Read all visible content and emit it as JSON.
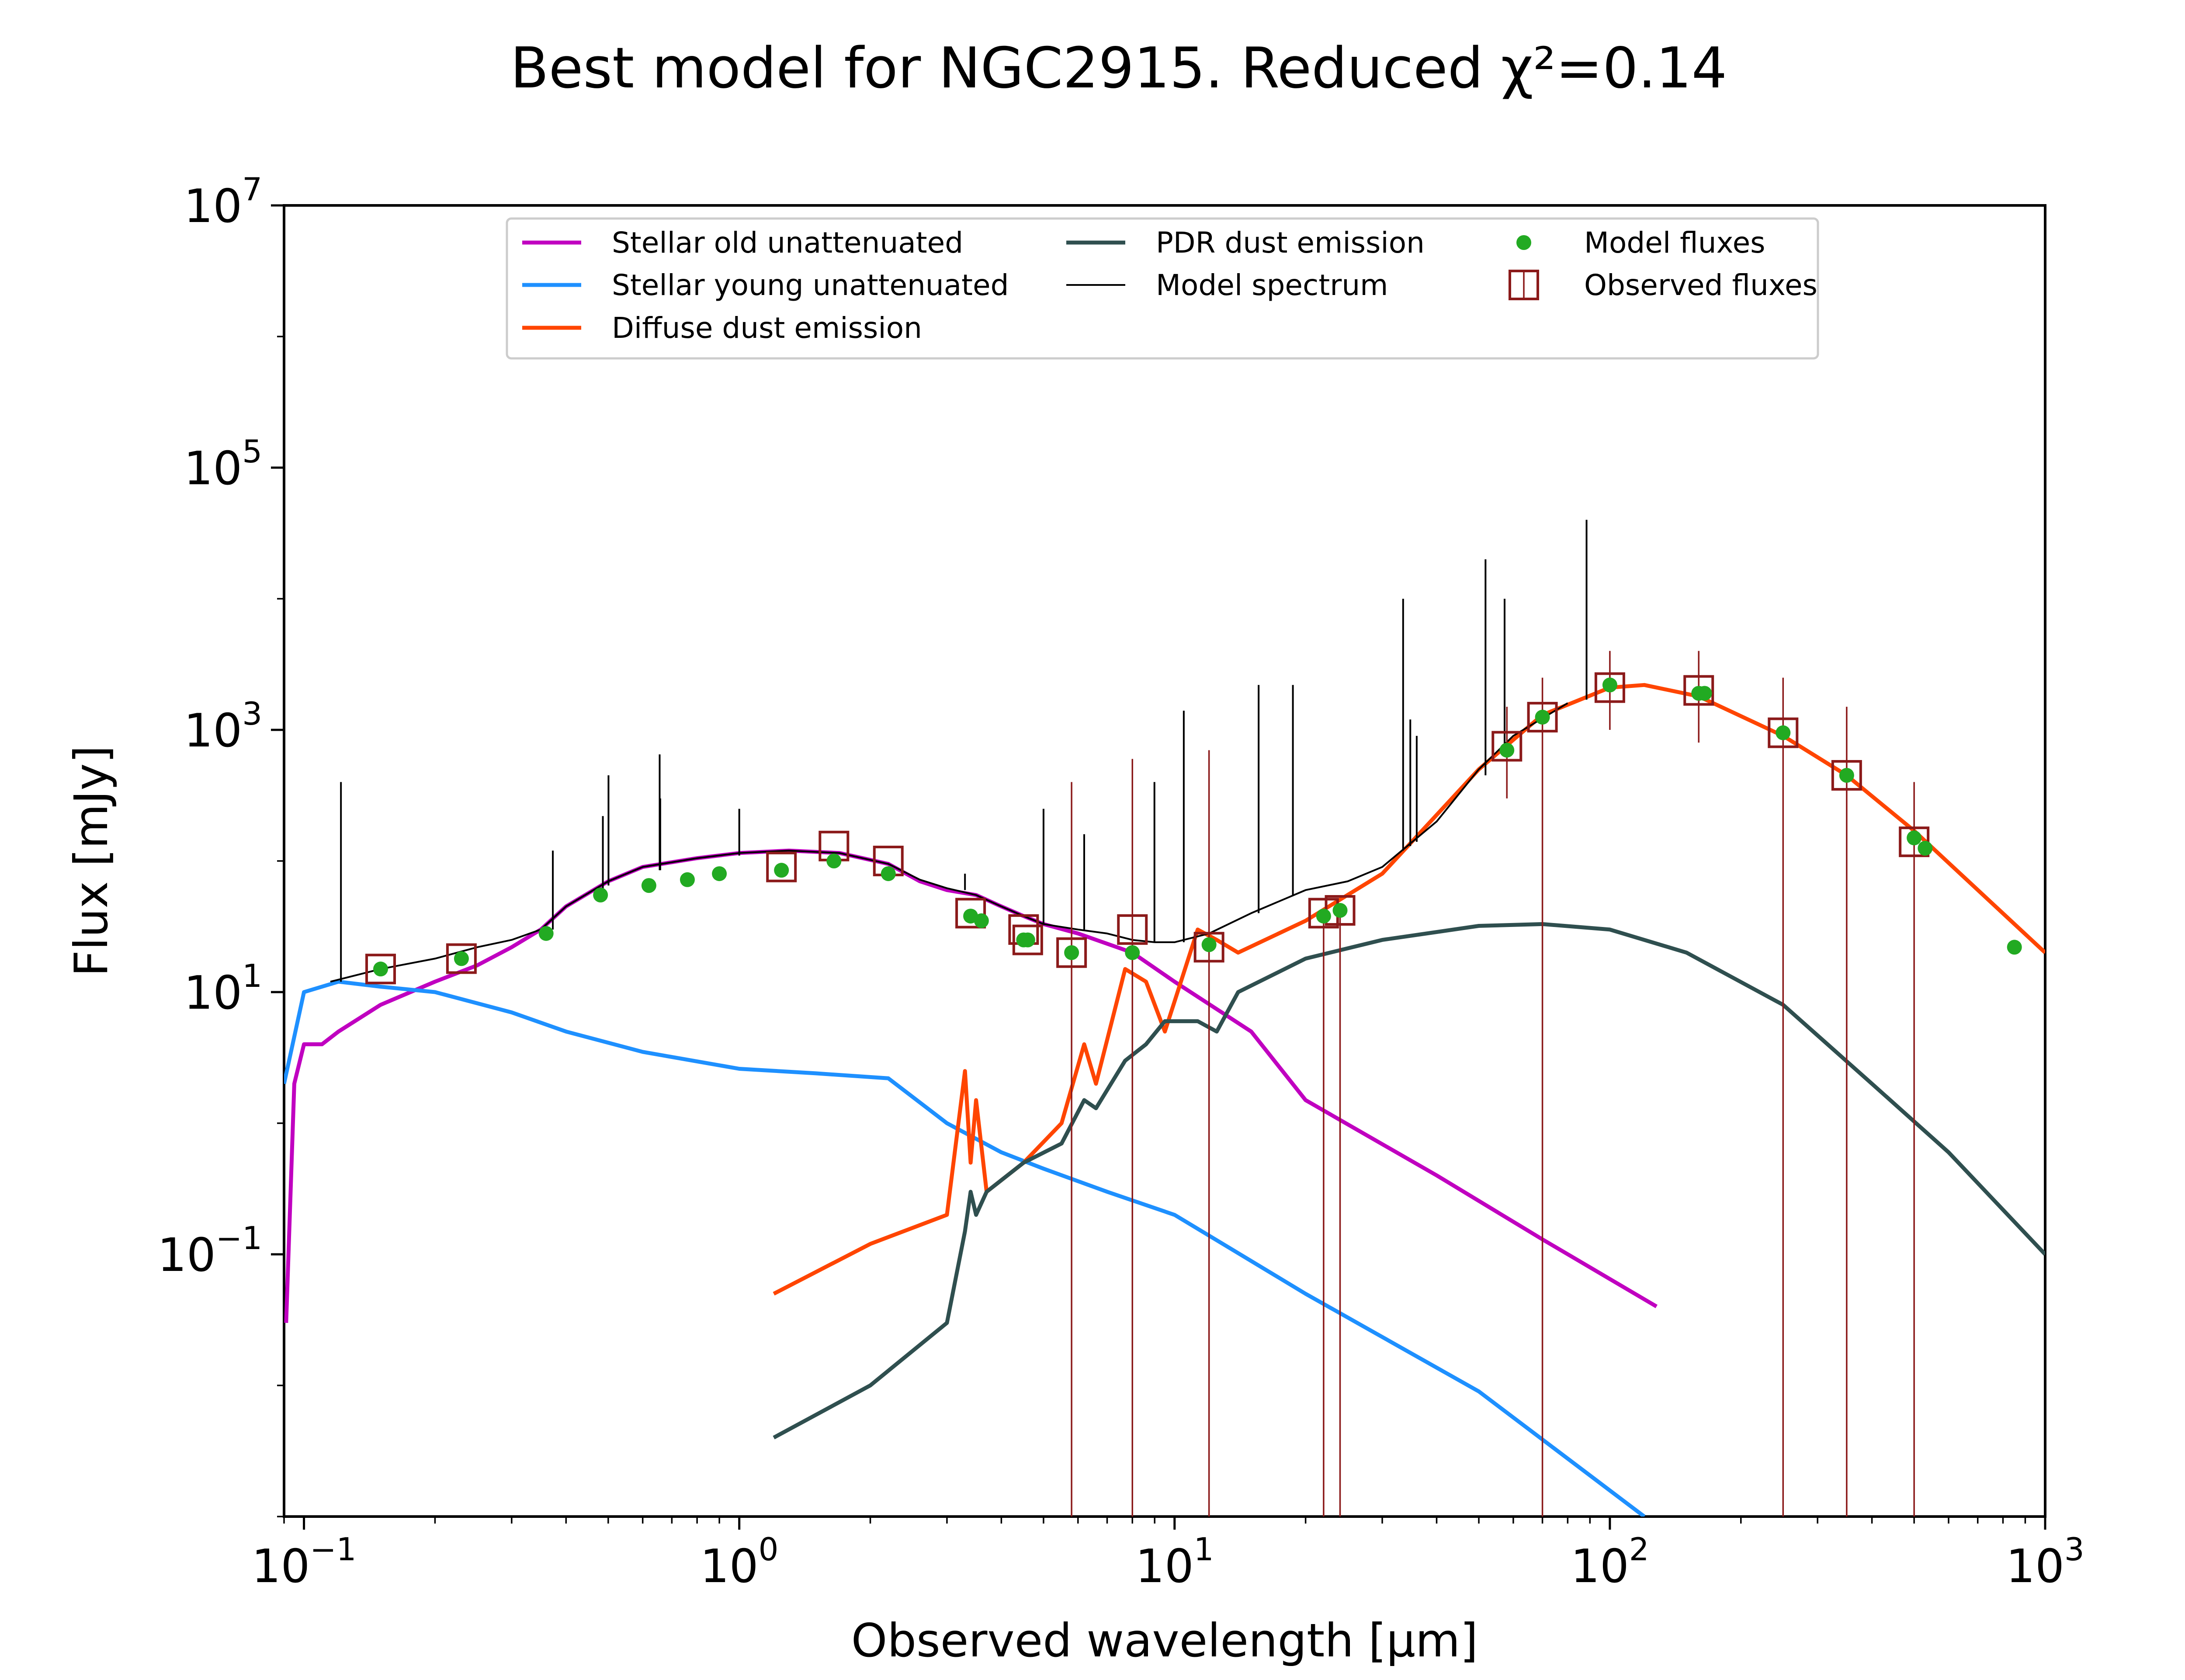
{
  "chart_data": {
    "type": "line",
    "title": "Best model for NGC2915. Reduced χ²=0.14",
    "xlabel": "Observed wavelength [μm]",
    "ylabel": "Flux [mJy]",
    "xscale": "log",
    "yscale": "log",
    "xlim": [
      0.09,
      1000
    ],
    "ylim": [
      0.001,
      10000000
    ],
    "x_ticks": [
      {
        "value": 0.1,
        "base": "10",
        "exp": "−1"
      },
      {
        "value": 1,
        "base": "10",
        "exp": "0"
      },
      {
        "value": 10,
        "base": "10",
        "exp": "1"
      },
      {
        "value": 100,
        "base": "10",
        "exp": "2"
      },
      {
        "value": 1000,
        "base": "10",
        "exp": "3"
      }
    ],
    "y_ticks": [
      {
        "value": 0.1,
        "base": "10",
        "exp": "−1"
      },
      {
        "value": 10,
        "base": "10",
        "exp": "1"
      },
      {
        "value": 1000,
        "base": "10",
        "exp": "3"
      },
      {
        "value": 100000,
        "base": "10",
        "exp": "5"
      },
      {
        "value": 10000000,
        "base": "10",
        "exp": "7"
      }
    ],
    "grid": false,
    "legend_position": "top",
    "legend": [
      {
        "label": "Stellar old unattenuated",
        "kind": "line",
        "color": "#c000c0"
      },
      {
        "label": "Stellar young unattenuated",
        "kind": "line",
        "color": "#1e90ff"
      },
      {
        "label": "Diffuse dust emission",
        "kind": "line",
        "color": "#ff4500"
      },
      {
        "label": "PDR dust emission",
        "kind": "line",
        "color": "#2f4f4f"
      },
      {
        "label": "Model spectrum",
        "kind": "thinline",
        "color": "#000000"
      },
      {
        "label": "Model fluxes",
        "kind": "dot",
        "color": "#22aa22"
      },
      {
        "label": "Observed fluxes",
        "kind": "square",
        "color": "#8b1a1a"
      }
    ],
    "series": [
      {
        "name": "Stellar old unattenuated",
        "color": "#c000c0",
        "x": [
          0.091,
          0.095,
          0.1,
          0.11,
          0.12,
          0.15,
          0.2,
          0.25,
          0.3,
          0.35,
          0.4,
          0.5,
          0.6,
          0.8,
          1.0,
          1.3,
          1.7,
          2.2,
          2.6,
          3.0,
          3.5,
          4.0,
          4.5,
          5.0,
          6.0,
          8.0,
          10,
          15,
          20,
          40,
          70,
          128
        ],
        "y": [
          0.03,
          2,
          4,
          4,
          5,
          8,
          12,
          16,
          22,
          30,
          45,
          70,
          90,
          105,
          115,
          120,
          115,
          95,
          70,
          60,
          55,
          45,
          38,
          33,
          28,
          20,
          12,
          5,
          1.5,
          0.4,
          0.13,
          0.04
        ]
      },
      {
        "name": "Stellar young unattenuated",
        "color": "#1e90ff",
        "x": [
          0.09,
          0.1,
          0.12,
          0.15,
          0.2,
          0.3,
          0.4,
          0.6,
          1.0,
          1.5,
          2.2,
          3.0,
          4.0,
          5.0,
          7.0,
          10,
          20,
          50,
          120
        ],
        "y": [
          2,
          10,
          12,
          11,
          10,
          7,
          5,
          3.5,
          2.6,
          2.4,
          2.2,
          1.0,
          0.6,
          0.45,
          0.3,
          0.2,
          0.05,
          0.009,
          0.001
        ]
      },
      {
        "name": "Diffuse dust emission",
        "color": "#ff4500",
        "x": [
          1.2,
          2.0,
          3.0,
          3.3,
          3.4,
          3.5,
          3.7,
          4.5,
          5.5,
          6.2,
          6.6,
          7.7,
          8.6,
          9.5,
          11.3,
          12.5,
          14,
          20,
          30,
          50,
          70,
          100,
          120,
          160,
          250,
          350,
          500,
          1000
        ],
        "y": [
          0.05,
          0.12,
          0.2,
          2.5,
          0.5,
          1.5,
          0.3,
          0.5,
          1.0,
          4.0,
          2.0,
          15,
          12,
          5,
          30,
          25,
          20,
          35,
          80,
          500,
          1300,
          2100,
          2200,
          1800,
          900,
          450,
          170,
          20
        ]
      },
      {
        "name": "PDR dust emission",
        "color": "#2f4f4f",
        "x": [
          1.2,
          2.0,
          3.0,
          3.3,
          3.4,
          3.5,
          3.7,
          4.5,
          5.5,
          6.2,
          6.6,
          7.7,
          8.6,
          9.5,
          11.3,
          12.5,
          14,
          20,
          30,
          50,
          70,
          100,
          150,
          250,
          400,
          600,
          1000
        ],
        "y": [
          0.004,
          0.01,
          0.03,
          0.15,
          0.3,
          0.2,
          0.3,
          0.5,
          0.7,
          1.5,
          1.3,
          3,
          4,
          6,
          6,
          5,
          10,
          18,
          25,
          32,
          33,
          30,
          20,
          8,
          2,
          0.6,
          0.1
        ]
      },
      {
        "name": "Model spectrum",
        "color": "#000000",
        "x": [
          0.115,
          0.15,
          0.2,
          0.25,
          0.3,
          0.35,
          0.4,
          0.5,
          0.6,
          0.8,
          1.0,
          1.3,
          1.7,
          2.2,
          2.6,
          3.0,
          3.5,
          4.0,
          4.5,
          5.0,
          6.0,
          7.0,
          8.0,
          9.0,
          10,
          12,
          15,
          20,
          25,
          30,
          40,
          50,
          60,
          80
        ],
        "y": [
          12,
          15,
          18,
          22,
          25,
          30,
          45,
          70,
          90,
          105,
          115,
          120,
          115,
          95,
          72,
          62,
          55,
          45,
          38,
          33,
          30,
          28,
          25,
          24,
          24,
          28,
          40,
          60,
          70,
          90,
          200,
          500,
          900,
          1600
        ]
      }
    ],
    "model_fluxes": {
      "x": [
        0.15,
        0.23,
        0.36,
        0.48,
        0.62,
        0.76,
        0.9,
        1.25,
        1.65,
        2.2,
        3.4,
        3.6,
        4.5,
        4.6,
        5.8,
        8.0,
        12,
        22,
        24,
        58,
        70,
        100,
        160,
        165,
        250,
        350,
        500,
        530,
        850
      ],
      "y": [
        15,
        18,
        28,
        55,
        65,
        72,
        80,
        85,
        100,
        80,
        38,
        35,
        25,
        25,
        20,
        20,
        23,
        38,
        42,
        700,
        1250,
        2200,
        1900,
        1900,
        950,
        450,
        150,
        125,
        22
      ]
    },
    "observed_fluxes": {
      "x": [
        0.15,
        0.23,
        1.25,
        1.65,
        2.2,
        3.4,
        4.5,
        4.6,
        5.8,
        8.0,
        12,
        22,
        24,
        58,
        70,
        100,
        160,
        250,
        350,
        500
      ],
      "y": [
        15,
        18,
        90,
        130,
        100,
        40,
        30,
        25,
        20,
        30,
        22,
        40,
        42,
        750,
        1250,
        2100,
        2000,
        950,
        450,
        140
      ],
      "err_low": [
        null,
        null,
        null,
        null,
        null,
        null,
        null,
        null,
        0.001,
        0.001,
        0.001,
        0.001,
        0.001,
        300,
        0.001,
        1000,
        800,
        0.001,
        0.001,
        0.001
      ],
      "err_high": [
        null,
        null,
        null,
        null,
        null,
        null,
        null,
        null,
        400,
        600,
        700,
        0,
        0,
        1500,
        2500,
        4000,
        4000,
        2500,
        1500,
        400
      ]
    },
    "emission_lines": [
      {
        "x": 0.1216,
        "peak": 400,
        "base": 12
      },
      {
        "x": 0.373,
        "peak": 120,
        "base": 30
      },
      {
        "x": 0.486,
        "peak": 220,
        "base": 60
      },
      {
        "x": 0.5007,
        "peak": 450,
        "base": 65
      },
      {
        "x": 0.6563,
        "peak": 650,
        "base": 85
      },
      {
        "x": 0.6584,
        "peak": 300,
        "base": 85
      },
      {
        "x": 1.0,
        "peak": 250,
        "base": 110
      },
      {
        "x": 3.3,
        "peak": 80,
        "base": 60
      },
      {
        "x": 5.0,
        "peak": 250,
        "base": 33
      },
      {
        "x": 6.2,
        "peak": 160,
        "base": 30
      },
      {
        "x": 8.99,
        "peak": 400,
        "base": 24
      },
      {
        "x": 10.5,
        "peak": 1400,
        "base": 24
      },
      {
        "x": 15.6,
        "peak": 2200,
        "base": 40
      },
      {
        "x": 18.7,
        "peak": 2200,
        "base": 55
      },
      {
        "x": 33.5,
        "peak": 10000,
        "base": 120
      },
      {
        "x": 34.8,
        "peak": 1200,
        "base": 130
      },
      {
        "x": 36.0,
        "peak": 900,
        "base": 140
      },
      {
        "x": 51.8,
        "peak": 20000,
        "base": 450
      },
      {
        "x": 57.3,
        "peak": 10000,
        "base": 650
      },
      {
        "x": 88.4,
        "peak": 40000,
        "base": 1700
      }
    ]
  }
}
